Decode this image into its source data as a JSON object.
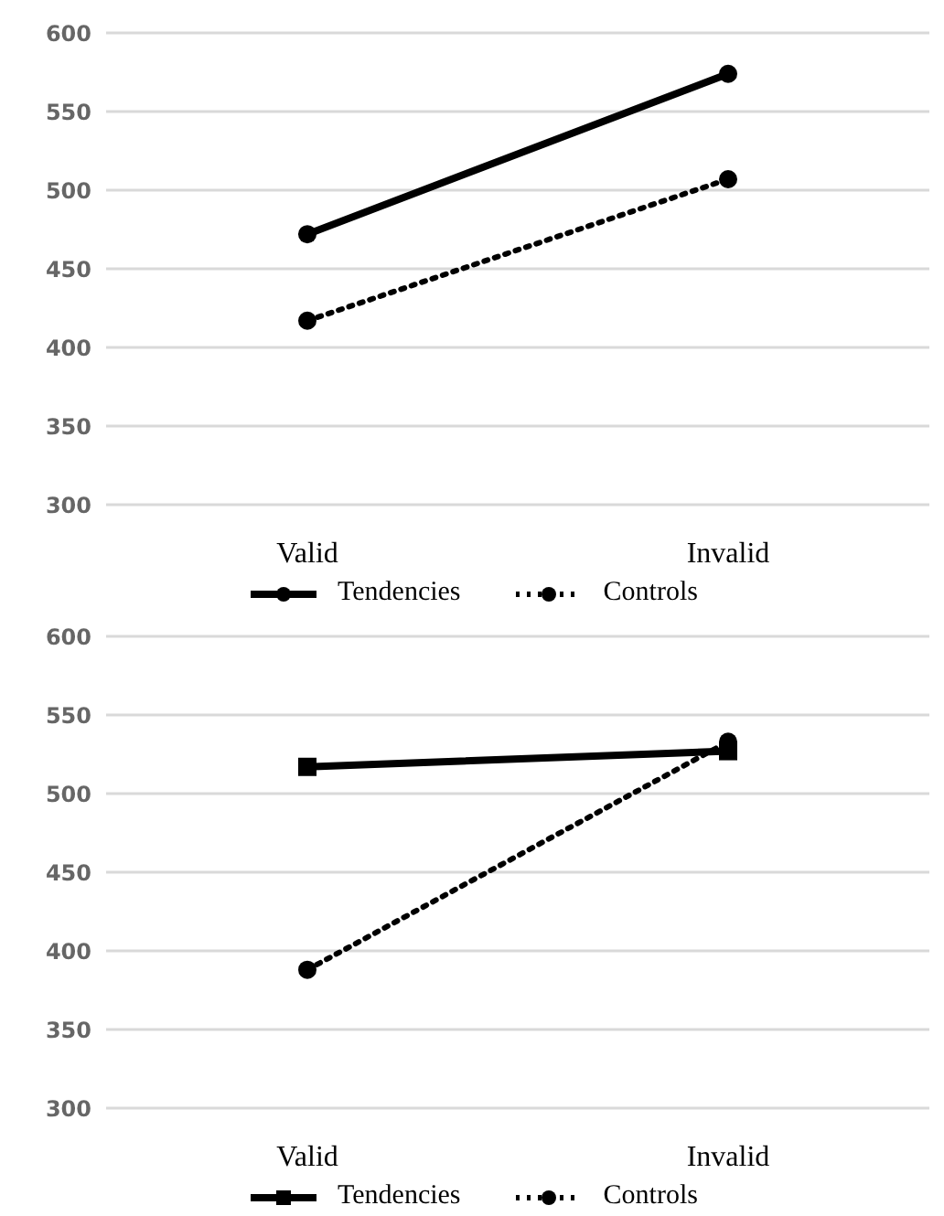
{
  "chart_data": [
    {
      "type": "line",
      "categories": [
        "Valid",
        "Invalid"
      ],
      "ylim": [
        300,
        600
      ],
      "yticks": [
        300,
        350,
        400,
        450,
        500,
        550,
        600
      ],
      "grid": "y",
      "legend": "bottom",
      "marker": "circle",
      "series": [
        {
          "name": "Tendencies",
          "color": "#000000",
          "values": [
            472,
            574
          ],
          "line_style": "solid"
        },
        {
          "name": "Controls",
          "color": "#000000",
          "values": [
            417,
            507
          ],
          "line_style": "dotted"
        }
      ]
    },
    {
      "type": "line",
      "categories": [
        "Valid",
        "Invalid"
      ],
      "ylim": [
        300,
        600
      ],
      "yticks": [
        300,
        350,
        400,
        450,
        500,
        550,
        600
      ],
      "grid": "y",
      "legend": "bottom",
      "series": [
        {
          "name": "Tendencies",
          "color": "#000000",
          "values": [
            517,
            527
          ],
          "line_style": "solid",
          "marker": "square"
        },
        {
          "name": "Controls",
          "color": "#000000",
          "values": [
            388,
            533
          ],
          "line_style": "dotted",
          "marker": "circle"
        }
      ]
    }
  ]
}
